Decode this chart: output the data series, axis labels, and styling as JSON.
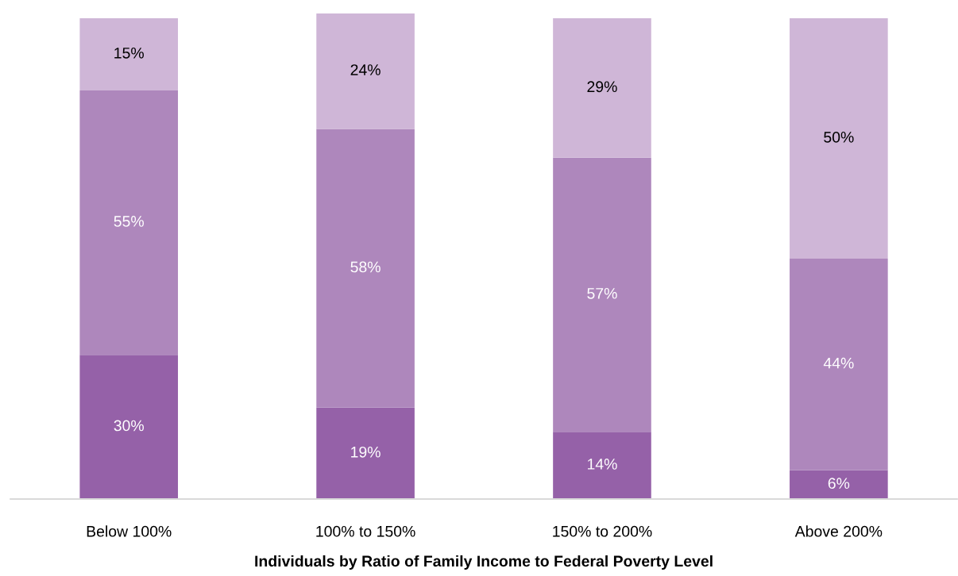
{
  "chart_data": {
    "type": "bar",
    "stacked": true,
    "tick_labels": "x",
    "xlabel": "Individuals by Ratio of Family Income to Federal Poverty Level",
    "categories": [
      "Below 100%",
      "100% to 150%",
      "150% to 200%",
      "Above 200%"
    ],
    "series": [
      {
        "color": "#9561a8",
        "values": [
          30,
          19,
          14,
          6
        ],
        "value_labels": [
          "30%",
          "19%",
          "14%",
          "6%"
        ]
      },
      {
        "color": "#ae87bc",
        "values": [
          55,
          58,
          57,
          44
        ],
        "value_labels": [
          "55%",
          "58%",
          "57%",
          "44%"
        ]
      },
      {
        "color": "#cfb6d7",
        "values": [
          15,
          24,
          29,
          50
        ],
        "value_labels": [
          "15%",
          "24%",
          "29%",
          "50%"
        ]
      }
    ]
  }
}
